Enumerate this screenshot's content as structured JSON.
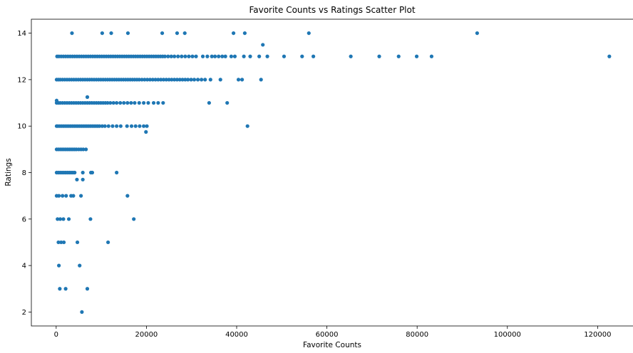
{
  "chart_data": {
    "type": "scatter",
    "title": "Favorite Counts vs Ratings Scatter Plot",
    "xlabel": "Favorite Counts",
    "ylabel": "Ratings",
    "xlim": [
      -5500,
      128000
    ],
    "ylim": [
      1.4,
      14.6
    ],
    "xticks": [
      0,
      20000,
      40000,
      60000,
      80000,
      100000,
      120000
    ],
    "yticks": [
      2,
      4,
      6,
      8,
      10,
      12,
      14
    ],
    "grid": false,
    "marker_color": "#1f77b4",
    "series": [
      {
        "points": [
          [
            3500,
            14
          ],
          [
            10200,
            14
          ],
          [
            12200,
            14
          ],
          [
            15900,
            14
          ],
          [
            23500,
            14
          ],
          [
            26800,
            14
          ],
          [
            28500,
            14
          ],
          [
            39300,
            14
          ],
          [
            41800,
            14
          ],
          [
            56000,
            14
          ],
          [
            93300,
            14
          ],
          [
            45800,
            13.5
          ],
          [
            200,
            13
          ],
          [
            600,
            13
          ],
          [
            1100,
            13
          ],
          [
            1600,
            13
          ],
          [
            2100,
            13
          ],
          [
            2600,
            13
          ],
          [
            3100,
            13
          ],
          [
            3600,
            13
          ],
          [
            4100,
            13
          ],
          [
            4600,
            13
          ],
          [
            5100,
            13
          ],
          [
            5600,
            13
          ],
          [
            6100,
            13
          ],
          [
            6600,
            13
          ],
          [
            7100,
            13
          ],
          [
            7600,
            13
          ],
          [
            8100,
            13
          ],
          [
            8600,
            13
          ],
          [
            9100,
            13
          ],
          [
            9600,
            13
          ],
          [
            10100,
            13
          ],
          [
            10600,
            13
          ],
          [
            11100,
            13
          ],
          [
            11600,
            13
          ],
          [
            12100,
            13
          ],
          [
            12600,
            13
          ],
          [
            13100,
            13
          ],
          [
            13600,
            13
          ],
          [
            14100,
            13
          ],
          [
            14600,
            13
          ],
          [
            15100,
            13
          ],
          [
            15600,
            13
          ],
          [
            16100,
            13
          ],
          [
            16600,
            13
          ],
          [
            17100,
            13
          ],
          [
            17600,
            13
          ],
          [
            18100,
            13
          ],
          [
            18600,
            13
          ],
          [
            19100,
            13
          ],
          [
            19600,
            13
          ],
          [
            20100,
            13
          ],
          [
            20600,
            13
          ],
          [
            21100,
            13
          ],
          [
            21600,
            13
          ],
          [
            22100,
            13
          ],
          [
            22600,
            13
          ],
          [
            23100,
            13
          ],
          [
            23600,
            13
          ],
          [
            24100,
            13
          ],
          [
            24800,
            13
          ],
          [
            25500,
            13
          ],
          [
            26200,
            13
          ],
          [
            27000,
            13
          ],
          [
            27800,
            13
          ],
          [
            28600,
            13
          ],
          [
            29400,
            13
          ],
          [
            30200,
            13
          ],
          [
            31000,
            13
          ],
          [
            32500,
            13
          ],
          [
            33500,
            13
          ],
          [
            34500,
            13
          ],
          [
            35200,
            13
          ],
          [
            36000,
            13
          ],
          [
            36800,
            13
          ],
          [
            37500,
            13
          ],
          [
            38800,
            13
          ],
          [
            39600,
            13
          ],
          [
            41600,
            13
          ],
          [
            43000,
            13
          ],
          [
            45000,
            13
          ],
          [
            46800,
            13
          ],
          [
            50500,
            13
          ],
          [
            54500,
            13
          ],
          [
            57000,
            13
          ],
          [
            65300,
            13
          ],
          [
            71600,
            13
          ],
          [
            75900,
            13
          ],
          [
            79900,
            13
          ],
          [
            83200,
            13
          ],
          [
            122600,
            13
          ],
          [
            6900,
            11.25
          ],
          [
            100,
            12
          ],
          [
            500,
            12
          ],
          [
            900,
            12
          ],
          [
            1400,
            12
          ],
          [
            1900,
            12
          ],
          [
            2400,
            12
          ],
          [
            2900,
            12
          ],
          [
            3400,
            12
          ],
          [
            3900,
            12
          ],
          [
            4400,
            12
          ],
          [
            4900,
            12
          ],
          [
            5400,
            12
          ],
          [
            5900,
            12
          ],
          [
            6400,
            12
          ],
          [
            6900,
            12
          ],
          [
            7400,
            12
          ],
          [
            7900,
            12
          ],
          [
            8400,
            12
          ],
          [
            8900,
            12
          ],
          [
            9400,
            12
          ],
          [
            9900,
            12
          ],
          [
            10400,
            12
          ],
          [
            10900,
            12
          ],
          [
            11400,
            12
          ],
          [
            11900,
            12
          ],
          [
            12400,
            12
          ],
          [
            12900,
            12
          ],
          [
            13400,
            12
          ],
          [
            13900,
            12
          ],
          [
            14400,
            12
          ],
          [
            14900,
            12
          ],
          [
            15400,
            12
          ],
          [
            15900,
            12
          ],
          [
            16400,
            12
          ],
          [
            16900,
            12
          ],
          [
            17400,
            12
          ],
          [
            17900,
            12
          ],
          [
            18400,
            12
          ],
          [
            19000,
            12
          ],
          [
            19600,
            12
          ],
          [
            20200,
            12
          ],
          [
            20800,
            12
          ],
          [
            21400,
            12
          ],
          [
            22000,
            12
          ],
          [
            22600,
            12
          ],
          [
            23200,
            12
          ],
          [
            23800,
            12
          ],
          [
            24400,
            12
          ],
          [
            25000,
            12
          ],
          [
            25600,
            12
          ],
          [
            26200,
            12
          ],
          [
            26800,
            12
          ],
          [
            27400,
            12
          ],
          [
            28000,
            12
          ],
          [
            28600,
            12
          ],
          [
            29200,
            12
          ],
          [
            29900,
            12
          ],
          [
            30600,
            12
          ],
          [
            31400,
            12
          ],
          [
            32200,
            12
          ],
          [
            33000,
            12
          ],
          [
            34200,
            12
          ],
          [
            36400,
            12
          ],
          [
            40400,
            12
          ],
          [
            41200,
            12
          ],
          [
            45400,
            12
          ],
          [
            100,
            11.1
          ],
          [
            100,
            11
          ],
          [
            500,
            11
          ],
          [
            900,
            11
          ],
          [
            1400,
            11
          ],
          [
            1900,
            11
          ],
          [
            2400,
            11
          ],
          [
            2900,
            11
          ],
          [
            3400,
            11
          ],
          [
            3900,
            11
          ],
          [
            4400,
            11
          ],
          [
            4900,
            11
          ],
          [
            5400,
            11
          ],
          [
            5900,
            11
          ],
          [
            6400,
            11
          ],
          [
            6900,
            11
          ],
          [
            7400,
            11
          ],
          [
            7900,
            11
          ],
          [
            8400,
            11
          ],
          [
            8900,
            11
          ],
          [
            9400,
            11
          ],
          [
            9900,
            11
          ],
          [
            10400,
            11
          ],
          [
            10900,
            11
          ],
          [
            11400,
            11
          ],
          [
            12000,
            11
          ],
          [
            12700,
            11
          ],
          [
            13400,
            11
          ],
          [
            14200,
            11
          ],
          [
            15000,
            11
          ],
          [
            15800,
            11
          ],
          [
            16600,
            11
          ],
          [
            17400,
            11
          ],
          [
            18400,
            11
          ],
          [
            19400,
            11
          ],
          [
            20400,
            11
          ],
          [
            21600,
            11
          ],
          [
            22600,
            11
          ],
          [
            23700,
            11
          ],
          [
            33900,
            11
          ],
          [
            37900,
            11
          ],
          [
            100,
            10
          ],
          [
            400,
            10
          ],
          [
            800,
            10
          ],
          [
            1200,
            10
          ],
          [
            1600,
            10
          ],
          [
            2000,
            10
          ],
          [
            2400,
            10
          ],
          [
            2800,
            10
          ],
          [
            3200,
            10
          ],
          [
            3600,
            10
          ],
          [
            4000,
            10
          ],
          [
            4400,
            10
          ],
          [
            4800,
            10
          ],
          [
            5200,
            10
          ],
          [
            5600,
            10
          ],
          [
            6000,
            10
          ],
          [
            6400,
            10
          ],
          [
            6800,
            10
          ],
          [
            7200,
            10
          ],
          [
            7600,
            10
          ],
          [
            8000,
            10
          ],
          [
            8400,
            10
          ],
          [
            8800,
            10
          ],
          [
            9200,
            10
          ],
          [
            9600,
            10
          ],
          [
            10200,
            10
          ],
          [
            10800,
            10
          ],
          [
            11600,
            10
          ],
          [
            12500,
            10
          ],
          [
            13400,
            10
          ],
          [
            14300,
            10
          ],
          [
            15700,
            10
          ],
          [
            16700,
            10
          ],
          [
            17600,
            10
          ],
          [
            18500,
            10
          ],
          [
            19400,
            10
          ],
          [
            20100,
            10
          ],
          [
            42400,
            10
          ],
          [
            19900,
            9.75
          ],
          [
            100,
            9
          ],
          [
            500,
            9
          ],
          [
            900,
            9
          ],
          [
            1300,
            9
          ],
          [
            1700,
            9
          ],
          [
            2100,
            9
          ],
          [
            2500,
            9
          ],
          [
            2900,
            9
          ],
          [
            3300,
            9
          ],
          [
            3700,
            9
          ],
          [
            4100,
            9
          ],
          [
            4500,
            9
          ],
          [
            5000,
            9
          ],
          [
            5500,
            9
          ],
          [
            6000,
            9
          ],
          [
            6600,
            9
          ],
          [
            100,
            8
          ],
          [
            500,
            8
          ],
          [
            900,
            8
          ],
          [
            1300,
            8
          ],
          [
            1700,
            8
          ],
          [
            2100,
            8
          ],
          [
            2500,
            8
          ],
          [
            2900,
            8
          ],
          [
            3300,
            8
          ],
          [
            3700,
            8
          ],
          [
            4100,
            8
          ],
          [
            5900,
            8
          ],
          [
            7700,
            8
          ],
          [
            8000,
            8
          ],
          [
            13400,
            8
          ],
          [
            4600,
            7.7
          ],
          [
            5900,
            7.7
          ],
          [
            100,
            7
          ],
          [
            600,
            7
          ],
          [
            1400,
            7
          ],
          [
            2200,
            7
          ],
          [
            3300,
            7
          ],
          [
            3800,
            7
          ],
          [
            5500,
            7
          ],
          [
            15800,
            7
          ],
          [
            300,
            6
          ],
          [
            900,
            6
          ],
          [
            1600,
            6
          ],
          [
            2800,
            6
          ],
          [
            7600,
            6
          ],
          [
            17200,
            6
          ],
          [
            500,
            5
          ],
          [
            1100,
            5
          ],
          [
            1700,
            5
          ],
          [
            4700,
            5
          ],
          [
            11500,
            5
          ],
          [
            600,
            4
          ],
          [
            5200,
            4
          ],
          [
            800,
            3
          ],
          [
            2100,
            3
          ],
          [
            6900,
            3
          ],
          [
            5700,
            2
          ]
        ]
      }
    ]
  }
}
